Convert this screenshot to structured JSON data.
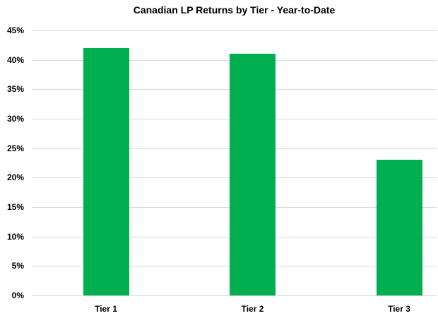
{
  "title": "Canadian LP Returns by Tier - Year-to-Date",
  "chart_data": {
    "type": "bar",
    "title": "Canadian LP Returns by Tier - Year-to-Date",
    "categories": [
      "Tier 1",
      "Tier 2",
      "Tier 3"
    ],
    "values": [
      42,
      41,
      23
    ],
    "value_unit": "%",
    "xlabel": "",
    "ylabel": "",
    "ylim": [
      0,
      45
    ],
    "ytick_step": 5,
    "ytick_labels": [
      "0%",
      "5%",
      "10%",
      "15%",
      "20%",
      "25%",
      "30%",
      "35%",
      "40%",
      "45%"
    ],
    "grid": "horizontal",
    "legend": "none",
    "colors": {
      "bar": "#00B050",
      "gridline": "#D9D9D9",
      "axis_line": "#D5D5D5",
      "text": "#000000",
      "background": "#FFFFFF"
    }
  }
}
